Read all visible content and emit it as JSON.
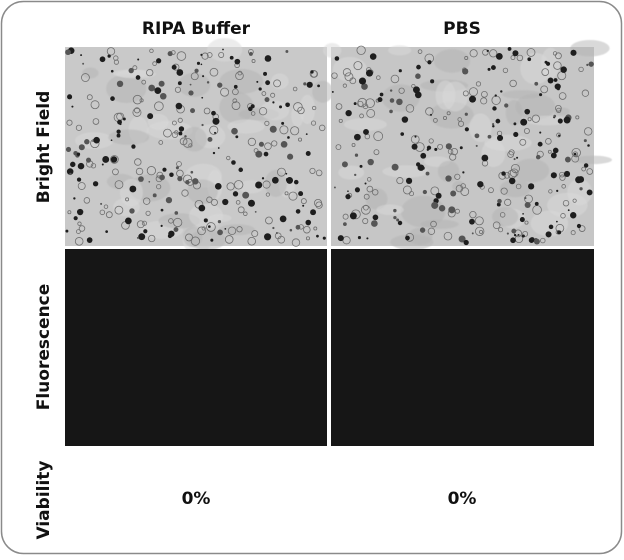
{
  "columns": [
    "RIPA Buffer",
    "PBS"
  ],
  "rows": [
    "Bright Field",
    "Fluorescence",
    "Viability"
  ],
  "viability": [
    "0%",
    "0%"
  ]
}
